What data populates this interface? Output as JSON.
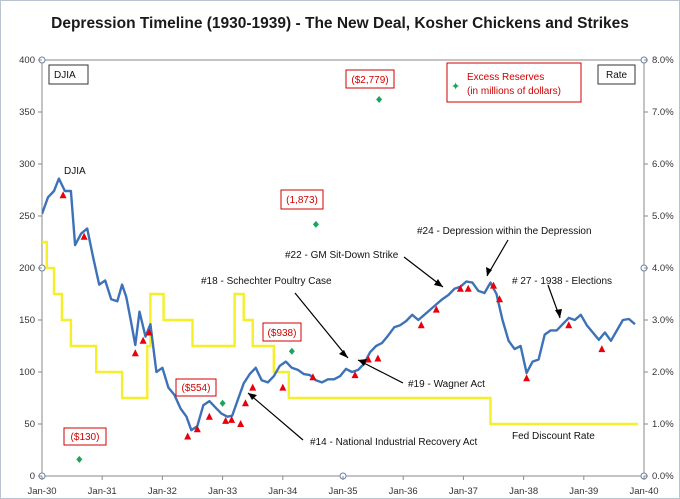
{
  "chart_data": {
    "type": "line",
    "title": "Depression Timeline (1930-1939) - The New Deal, Kosher Chickens and Strikes",
    "x_range": [
      1930.0,
      1940.0
    ],
    "x_ticks": [
      {
        "x": 1930.0,
        "label": "Jan-30"
      },
      {
        "x": 1931.0,
        "label": "Jan-31"
      },
      {
        "x": 1932.0,
        "label": "Jan-32"
      },
      {
        "x": 1933.0,
        "label": "Jan-33"
      },
      {
        "x": 1934.0,
        "label": "Jan-34"
      },
      {
        "x": 1935.0,
        "label": "Jan-35"
      },
      {
        "x": 1936.0,
        "label": "Jan-36"
      },
      {
        "x": 1937.0,
        "label": "Jan-37"
      },
      {
        "x": 1938.0,
        "label": "Jan-38"
      },
      {
        "x": 1939.0,
        "label": "Jan-39"
      },
      {
        "x": 1940.0,
        "label": "Jan-40"
      }
    ],
    "y_left": {
      "label": "DJIA",
      "range": [
        0,
        400
      ],
      "ticks": [
        0,
        50,
        100,
        150,
        200,
        250,
        300,
        350,
        400
      ]
    },
    "y_right": {
      "label": "Rate",
      "range": [
        0,
        8
      ],
      "ticks": [
        "0.0%",
        "1.0%",
        "2.0%",
        "3.0%",
        "4.0%",
        "5.0%",
        "6.0%",
        "7.0%",
        "8.0%"
      ]
    },
    "series": [
      {
        "name": "DJIA",
        "axis": "left",
        "color": "#3d72b8",
        "points": [
          [
            1930.0,
            252
          ],
          [
            1930.1,
            268
          ],
          [
            1930.2,
            274
          ],
          [
            1930.28,
            286
          ],
          [
            1930.38,
            274
          ],
          [
            1930.48,
            274
          ],
          [
            1930.55,
            222
          ],
          [
            1930.65,
            233
          ],
          [
            1930.75,
            238
          ],
          [
            1930.85,
            210
          ],
          [
            1930.95,
            184
          ],
          [
            1931.05,
            188
          ],
          [
            1931.15,
            170
          ],
          [
            1931.25,
            168
          ],
          [
            1931.33,
            184
          ],
          [
            1931.4,
            172
          ],
          [
            1931.48,
            148
          ],
          [
            1931.55,
            126
          ],
          [
            1931.62,
            158
          ],
          [
            1931.72,
            134
          ],
          [
            1931.8,
            146
          ],
          [
            1931.9,
            100
          ],
          [
            1932.0,
            104
          ],
          [
            1932.1,
            85
          ],
          [
            1932.2,
            78
          ],
          [
            1932.3,
            65
          ],
          [
            1932.4,
            57
          ],
          [
            1932.48,
            44
          ],
          [
            1932.58,
            48
          ],
          [
            1932.68,
            68
          ],
          [
            1932.78,
            72
          ],
          [
            1932.88,
            66
          ],
          [
            1932.98,
            60
          ],
          [
            1933.08,
            57
          ],
          [
            1933.16,
            58
          ],
          [
            1933.25,
            73
          ],
          [
            1933.35,
            89
          ],
          [
            1933.45,
            98
          ],
          [
            1933.55,
            104
          ],
          [
            1933.65,
            92
          ],
          [
            1933.75,
            90
          ],
          [
            1933.85,
            96
          ],
          [
            1933.95,
            106
          ],
          [
            1934.05,
            110
          ],
          [
            1934.15,
            104
          ],
          [
            1934.25,
            102
          ],
          [
            1934.35,
            98
          ],
          [
            1934.45,
            97
          ],
          [
            1934.55,
            92
          ],
          [
            1934.65,
            90
          ],
          [
            1934.75,
            93
          ],
          [
            1934.85,
            93
          ],
          [
            1934.95,
            96
          ],
          [
            1935.05,
            103
          ],
          [
            1935.15,
            100
          ],
          [
            1935.25,
            102
          ],
          [
            1935.35,
            108
          ],
          [
            1935.45,
            119
          ],
          [
            1935.55,
            125
          ],
          [
            1935.65,
            128
          ],
          [
            1935.75,
            135
          ],
          [
            1935.85,
            143
          ],
          [
            1935.95,
            145
          ],
          [
            1936.05,
            149
          ],
          [
            1936.15,
            155
          ],
          [
            1936.25,
            150
          ],
          [
            1936.35,
            155
          ],
          [
            1936.45,
            160
          ],
          [
            1936.55,
            165
          ],
          [
            1936.65,
            170
          ],
          [
            1936.75,
            174
          ],
          [
            1936.85,
            180
          ],
          [
            1936.95,
            182
          ],
          [
            1937.05,
            187
          ],
          [
            1937.15,
            186
          ],
          [
            1937.25,
            178
          ],
          [
            1937.35,
            176
          ],
          [
            1937.45,
            186
          ],
          [
            1937.55,
            175
          ],
          [
            1937.65,
            150
          ],
          [
            1937.75,
            130
          ],
          [
            1937.85,
            122
          ],
          [
            1937.95,
            125
          ],
          [
            1938.05,
            99
          ],
          [
            1938.15,
            110
          ],
          [
            1938.25,
            112
          ],
          [
            1938.35,
            136
          ],
          [
            1938.45,
            140
          ],
          [
            1938.55,
            140
          ],
          [
            1938.65,
            146
          ],
          [
            1938.75,
            152
          ],
          [
            1938.85,
            150
          ],
          [
            1938.95,
            155
          ],
          [
            1939.05,
            145
          ],
          [
            1939.15,
            138
          ],
          [
            1939.25,
            131
          ],
          [
            1939.35,
            138
          ],
          [
            1939.45,
            130
          ],
          [
            1939.55,
            140
          ],
          [
            1939.65,
            150
          ],
          [
            1939.75,
            151
          ],
          [
            1939.85,
            146
          ]
        ]
      },
      {
        "name": "Fed Discount Rate",
        "axis": "right",
        "color": "#f5ef2a",
        "points": [
          [
            1930.0,
            4.5
          ],
          [
            1930.08,
            4.0
          ],
          [
            1930.2,
            3.5
          ],
          [
            1930.33,
            3.0
          ],
          [
            1930.48,
            2.5
          ],
          [
            1930.9,
            2.0
          ],
          [
            1931.33,
            1.5
          ],
          [
            1931.75,
            2.5
          ],
          [
            1931.8,
            3.5
          ],
          [
            1932.02,
            3.0
          ],
          [
            1932.5,
            2.5
          ],
          [
            1933.2,
            3.5
          ],
          [
            1933.35,
            3.0
          ],
          [
            1933.5,
            2.5
          ],
          [
            1933.85,
            2.0
          ],
          [
            1934.1,
            1.5
          ],
          [
            1937.45,
            1.0
          ],
          [
            1939.9,
            1.0
          ]
        ]
      }
    ],
    "markers": {
      "name": "Events",
      "color": "#e8000d",
      "points": [
        [
          1930.35,
          270
        ],
        [
          1930.7,
          230
        ],
        [
          1931.55,
          118
        ],
        [
          1931.68,
          130
        ],
        [
          1931.78,
          138
        ],
        [
          1932.42,
          38
        ],
        [
          1932.58,
          45
        ],
        [
          1932.78,
          57
        ],
        [
          1933.05,
          53
        ],
        [
          1933.15,
          54
        ],
        [
          1933.3,
          50
        ],
        [
          1933.38,
          70
        ],
        [
          1933.5,
          85
        ],
        [
          1934.0,
          85
        ],
        [
          1934.5,
          95
        ],
        [
          1935.2,
          97
        ],
        [
          1935.42,
          112
        ],
        [
          1935.58,
          113
        ],
        [
          1936.3,
          145
        ],
        [
          1936.55,
          160
        ],
        [
          1936.95,
          180
        ],
        [
          1937.08,
          180
        ],
        [
          1937.5,
          183
        ],
        [
          1937.6,
          170
        ],
        [
          1938.05,
          94
        ],
        [
          1938.75,
          145
        ],
        [
          1939.3,
          122
        ]
      ]
    },
    "excess_reserves": {
      "name": "Excess Reserves",
      "unit": "in millions of dollars",
      "axis": "left",
      "color": "#1aa55a",
      "points": [
        {
          "x": 1930.62,
          "y": 16,
          "label": "($130)"
        },
        {
          "x": 1933.0,
          "y": 70,
          "label": "($554)"
        },
        {
          "x": 1934.15,
          "y": 120,
          "label": "($938)"
        },
        {
          "x": 1934.55,
          "y": 242,
          "label": "(1,873)"
        },
        {
          "x": 1935.6,
          "y": 362,
          "label": "($2,779)"
        }
      ]
    },
    "annotations": {
      "djia": "DJIA",
      "event18": "#18 - Schechter Poultry Case",
      "event19": "#19 - Wagner Act",
      "event14": "#14 - National Industrial Recovery Act",
      "event22": "#22 - GM Sit-Down Strike",
      "event24": "#24 - Depression within the Depression",
      "event27": "# 27 - 1938 - Elections",
      "fed": "Fed Discount Rate"
    },
    "labels": {
      "left_box": "DJIA",
      "right_box": "Rate",
      "legend_line1": "Excess Reserves",
      "legend_line2": "(in millions of dollars)"
    }
  }
}
